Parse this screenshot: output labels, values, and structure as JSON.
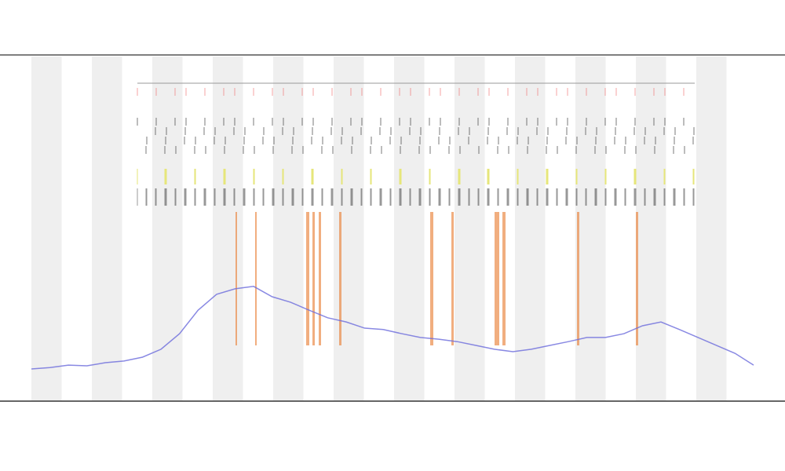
{
  "chart_data": {
    "type": "line",
    "categories": [
      null,
      null,
      null,
      null,
      null,
      null,
      null,
      null,
      null,
      null,
      null,
      null,
      null,
      null,
      null,
      null,
      null,
      null,
      null,
      null,
      null,
      null,
      null,
      null,
      null,
      null,
      null,
      null,
      null,
      null,
      null,
      null,
      null,
      null,
      null,
      null,
      null,
      null,
      null,
      null
    ],
    "series": [
      {
        "color": "#6b6bdc",
        "values": [
          9.1,
          9.5,
          10.2,
          10,
          10.9,
          11.4,
          12.5,
          14.8,
          19.3,
          26.1,
          30.7,
          32.3,
          33,
          30,
          28.4,
          26.1,
          23.9,
          22.7,
          20.9,
          20.5,
          19.3,
          18.2,
          17.7,
          17,
          15.9,
          14.8,
          14.1,
          14.8,
          15.9,
          17,
          18.2,
          18.2,
          19.3,
          21.6,
          22.7,
          20.5,
          18.2,
          15.9,
          13.6,
          10.2
        ]
      }
    ],
    "ylim": [
      0,
      100
    ]
  }
}
